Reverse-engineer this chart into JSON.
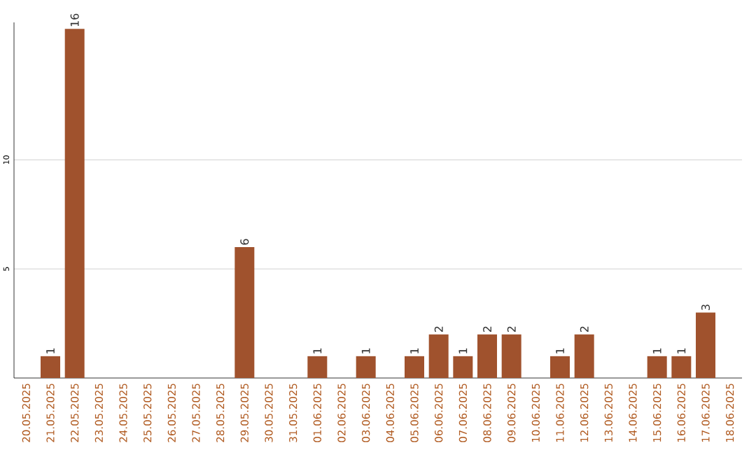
{
  "chart_data": {
    "type": "bar",
    "categories": [
      "20.05.2025",
      "21.05.2025",
      "22.05.2025",
      "23.05.2025",
      "24.05.2025",
      "25.05.2025",
      "26.05.2025",
      "27.05.2025",
      "28.05.2025",
      "29.05.2025",
      "30.05.2025",
      "31.05.2025",
      "01.06.2025",
      "02.06.2025",
      "03.06.2025",
      "04.06.2025",
      "05.06.2025",
      "06.06.2025",
      "07.06.2025",
      "08.06.2025",
      "09.06.2025",
      "10.06.2025",
      "11.06.2025",
      "12.06.2025",
      "13.06.2025",
      "14.06.2025",
      "15.06.2025",
      "16.06.2025",
      "17.06.2025",
      "18.06.2025"
    ],
    "values": [
      0,
      1,
      16,
      0,
      0,
      0,
      0,
      0,
      0,
      6,
      0,
      0,
      1,
      0,
      1,
      0,
      1,
      2,
      1,
      2,
      2,
      0,
      1,
      2,
      0,
      0,
      1,
      1,
      3,
      0
    ],
    "value_labels": [
      null,
      "1",
      "16",
      null,
      null,
      null,
      null,
      null,
      null,
      "6",
      null,
      null,
      "1",
      null,
      "1",
      null,
      "1",
      "2",
      "1",
      "2",
      "2",
      null,
      "1",
      "2",
      null,
      null,
      "1",
      "1",
      "3",
      null
    ],
    "color": "#a0522d",
    "ylim": [
      0,
      16.3
    ],
    "yticks": [
      5,
      10
    ],
    "grid": "y"
  }
}
